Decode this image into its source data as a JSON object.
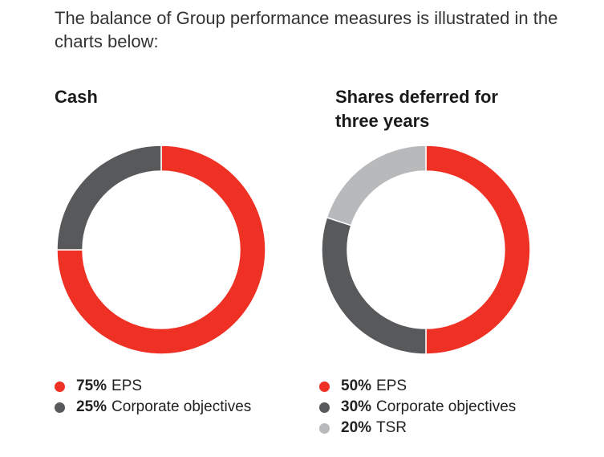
{
  "intro_text": "The balance of Group performance measures is illustrated in the charts below:",
  "chart_data": [
    {
      "type": "pie",
      "title": "Cash",
      "slices": [
        {
          "label": "EPS",
          "value": 75,
          "pct_label": "75%",
          "color": "#ee3124"
        },
        {
          "label": "Corporate objectives",
          "value": 25,
          "pct_label": "25%",
          "color": "#58595b"
        }
      ]
    },
    {
      "type": "pie",
      "title": "Shares deferred for three years",
      "slices": [
        {
          "label": "EPS",
          "value": 50,
          "pct_label": "50%",
          "color": "#ee3124"
        },
        {
          "label": "Corporate objectives",
          "value": 30,
          "pct_label": "30%",
          "color": "#58595b"
        },
        {
          "label": "TSR",
          "value": 20,
          "pct_label": "20%",
          "color": "#b7b9bb"
        }
      ]
    }
  ]
}
